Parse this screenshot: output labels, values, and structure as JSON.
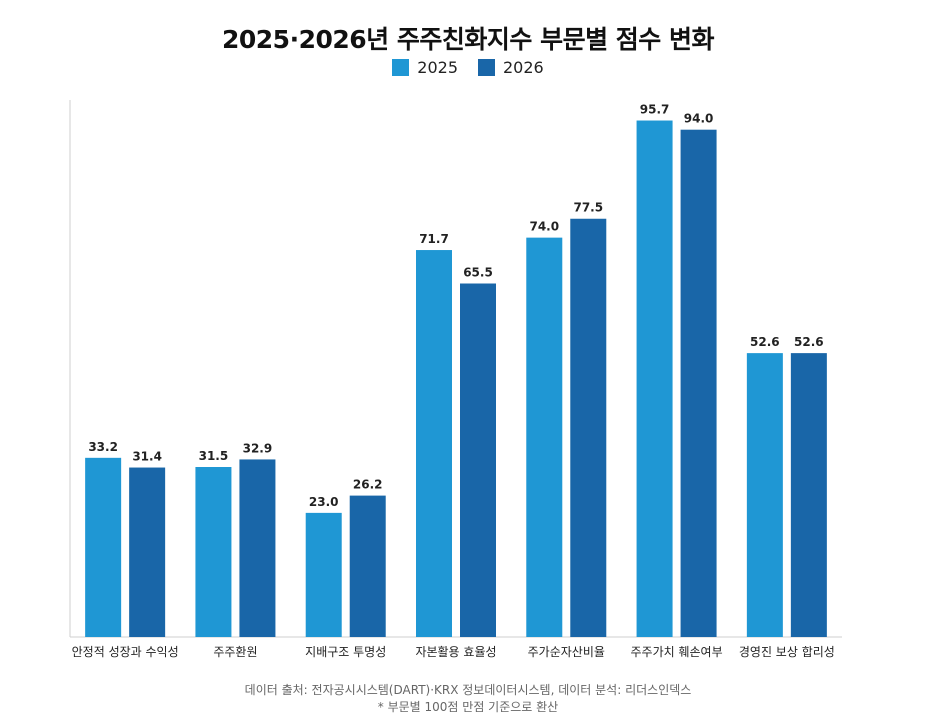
{
  "colors": {
    "series_2025": "#1f97d4",
    "series_2026": "#1966a8",
    "axis": "#cfcfcf",
    "text": "#222222"
  },
  "chart_data": {
    "type": "bar",
    "title": "2025·2026년 주주친화지수 부문별 점수 변화",
    "xlabel": "",
    "ylabel": "",
    "ylim": [
      0,
      100
    ],
    "grid": false,
    "legend_position": "top-center",
    "categories": [
      "안정적 성장과 수익성",
      "주주환원",
      "지배구조 투명성",
      "자본활용 효율성",
      "주가순자산비율",
      "주주가치 훼손여부",
      "경영진 보상 합리성"
    ],
    "series": [
      {
        "name": "2025",
        "values": [
          33.2,
          31.5,
          23.0,
          71.7,
          74.0,
          95.7,
          52.6
        ]
      },
      {
        "name": "2026",
        "values": [
          31.4,
          32.9,
          26.2,
          65.5,
          77.5,
          94.0,
          52.6
        ]
      }
    ],
    "data_labels": [
      [
        "33.2",
        "31.5",
        "23.0",
        "71.7",
        "74.0",
        "95.7",
        "52.6"
      ],
      [
        "31.4",
        "32.9",
        "26.2",
        "65.5",
        "77.5",
        "94.0",
        "52.6"
      ]
    ]
  },
  "footer": {
    "source": "데이터 출처: 전자공시시스템(DART)·KRX 정보데이터시스템, 데이터 분석: 리더스인덱스",
    "note": "* 부문별 100점 만점 기준으로 환산"
  }
}
